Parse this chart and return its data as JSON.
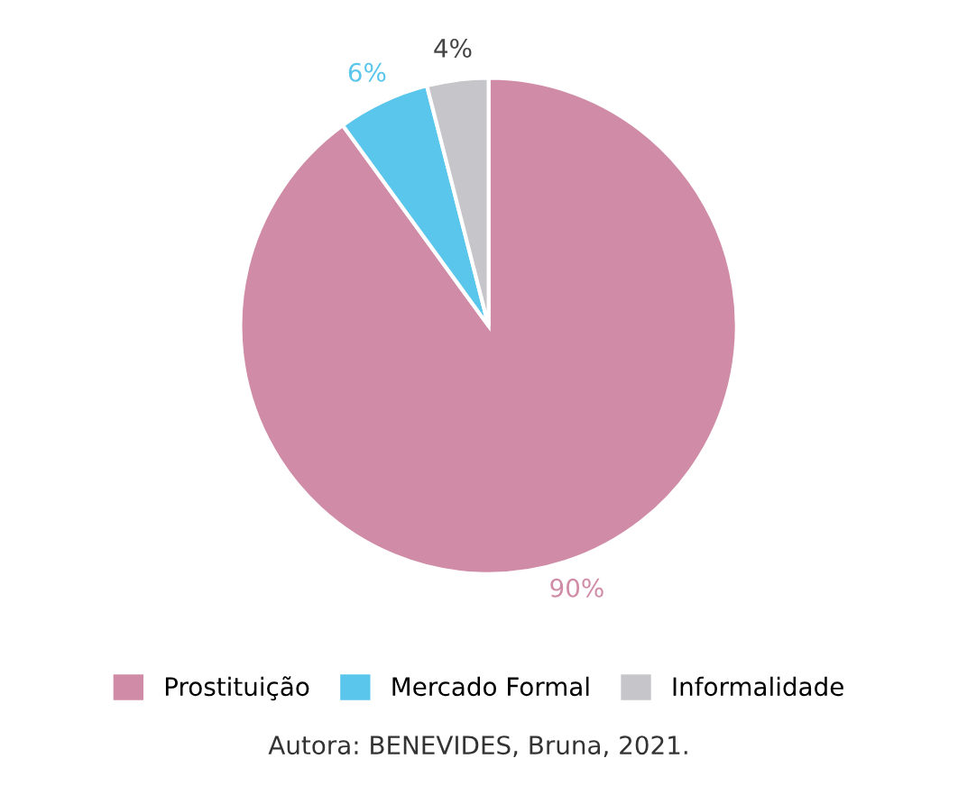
{
  "chart_data": {
    "type": "pie",
    "categories": [
      "Prostituição",
      "Mercado Formal",
      "Informalidade"
    ],
    "values": [
      90,
      6,
      4
    ],
    "colors": [
      "#d08ca6",
      "#5bc6ec",
      "#c6c6ca"
    ],
    "value_labels": [
      "90%",
      "6%",
      "4%"
    ],
    "legend": "bottom",
    "annotations": [
      "Autora: BENEVIDES, Bruna, 2021."
    ]
  }
}
